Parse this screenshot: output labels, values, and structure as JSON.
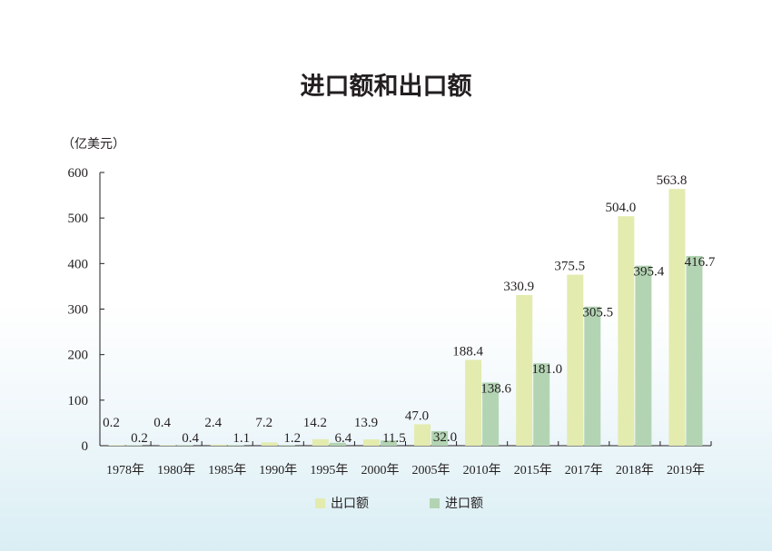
{
  "chart_data": {
    "type": "bar",
    "title": "进口额和出口额",
    "unit_label": "（亿美元）",
    "categories": [
      "1978年",
      "1980年",
      "1985年",
      "1990年",
      "1995年",
      "2000年",
      "2005年",
      "2010年",
      "2015年",
      "2017年",
      "2018年",
      "2019年"
    ],
    "series": [
      {
        "name": "出口额",
        "color": "#e3ebaf",
        "values": [
          0.2,
          0.4,
          2.4,
          7.2,
          14.2,
          13.9,
          47.0,
          188.4,
          330.9,
          375.5,
          504.0,
          563.8
        ],
        "labels": [
          "0.2",
          "0.4",
          "2.4",
          "7.2",
          "14.2",
          "13.9",
          "47.0",
          "188.4",
          "330.9",
          "375.5",
          "504.0",
          "563.8"
        ]
      },
      {
        "name": "进口额",
        "color": "#b3d4b3",
        "values": [
          0.2,
          0.4,
          1.1,
          1.2,
          6.4,
          11.5,
          32.0,
          138.6,
          181.0,
          305.5,
          395.4,
          416.7
        ],
        "labels": [
          "0.2",
          "0.4",
          "1.1",
          "1.2",
          "6.4",
          "11.5",
          "32.0",
          "138.6",
          "181.0",
          "305.5",
          "395.4",
          "416.7"
        ]
      }
    ],
    "yticks": [
      "0",
      "100",
      "200",
      "300",
      "400",
      "500",
      "600"
    ],
    "ylim": [
      0,
      600
    ],
    "legend": "bottom",
    "grid": false
  }
}
